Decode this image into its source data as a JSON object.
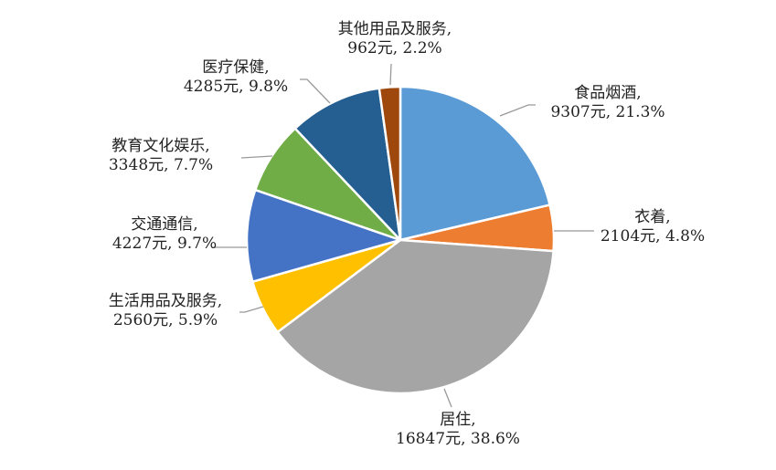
{
  "chart_data": {
    "type": "pie",
    "title": "",
    "unit": "元",
    "start_angle_deg": 0,
    "direction": "clockwise",
    "slices": [
      {
        "name": "食品烟酒",
        "value": 9307,
        "percent": "21.3%",
        "color": "#5B9BD5",
        "label_line1": "食品烟酒,",
        "label_line2": "9307元, 21.3%"
      },
      {
        "name": "衣着",
        "value": 2104,
        "percent": "4.8%",
        "color": "#ED7D31",
        "label_line1": "衣着,",
        "label_line2": "2104元, 4.8%"
      },
      {
        "name": "居住",
        "value": 16847,
        "percent": "38.6%",
        "color": "#A5A5A5",
        "label_line1": "居住,",
        "label_line2": "16847元, 38.6%"
      },
      {
        "name": "生活用品及服务",
        "value": 2560,
        "percent": "5.9%",
        "color": "#FFC000",
        "label_line1": "生活用品及服务,",
        "label_line2": "2560元, 5.9%"
      },
      {
        "name": "交通通信",
        "value": 4227,
        "percent": "9.7%",
        "color": "#4472C4",
        "label_line1": "交通通信,",
        "label_line2": "4227元, 9.7%"
      },
      {
        "name": "教育文化娱乐",
        "value": 3348,
        "percent": "7.7%",
        "color": "#70AD47",
        "label_line1": "教育文化娱乐,",
        "label_line2": "3348元, 7.7%"
      },
      {
        "name": "医疗保健",
        "value": 4285,
        "percent": "9.8%",
        "color": "#255E91",
        "label_line1": "医疗保健,",
        "label_line2": "4285元, 9.8%"
      },
      {
        "name": "其他用品及服务",
        "value": 962,
        "percent": "2.2%",
        "color": "#9E480E",
        "label_line1": "其他用品及服务,",
        "label_line2": "962元, 2.2%"
      }
    ],
    "legend": "none",
    "data_labels": "outside with leader lines"
  }
}
